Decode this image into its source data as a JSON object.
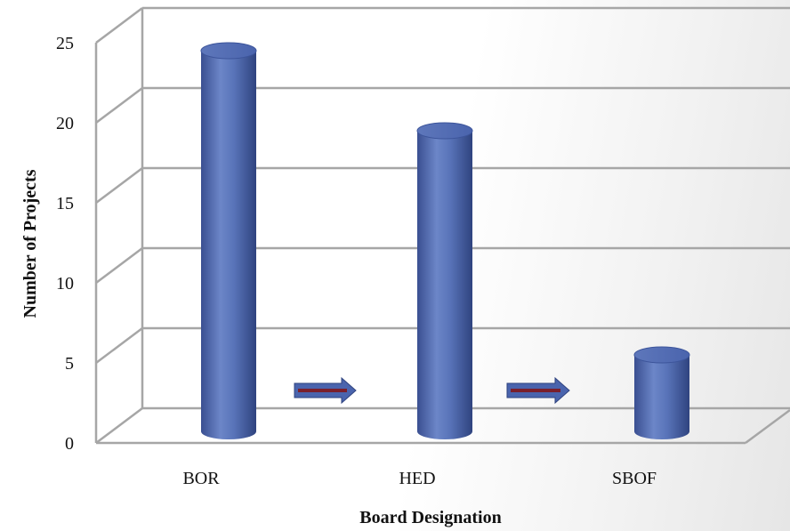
{
  "chart_data": {
    "type": "bar",
    "categories": [
      "BOR",
      "HED",
      "SBOF"
    ],
    "values": [
      24,
      19,
      5
    ],
    "title": "",
    "xlabel": "Board Designation",
    "ylabel": "Number of Projects",
    "ylim": [
      0,
      25
    ],
    "yticks": [
      "0",
      "5",
      "10",
      "15",
      "20",
      "25"
    ],
    "grid": true,
    "legend": "none",
    "annotations": [
      "arrow BOR to HED",
      "arrow HED to SBOF"
    ],
    "colors": {
      "bar": "#4a64ad",
      "bar_top": "#6c86c8",
      "arrow": "#4a64ad",
      "arrow_line": "#7a1f2b",
      "grid": "#a6a6a6"
    }
  }
}
